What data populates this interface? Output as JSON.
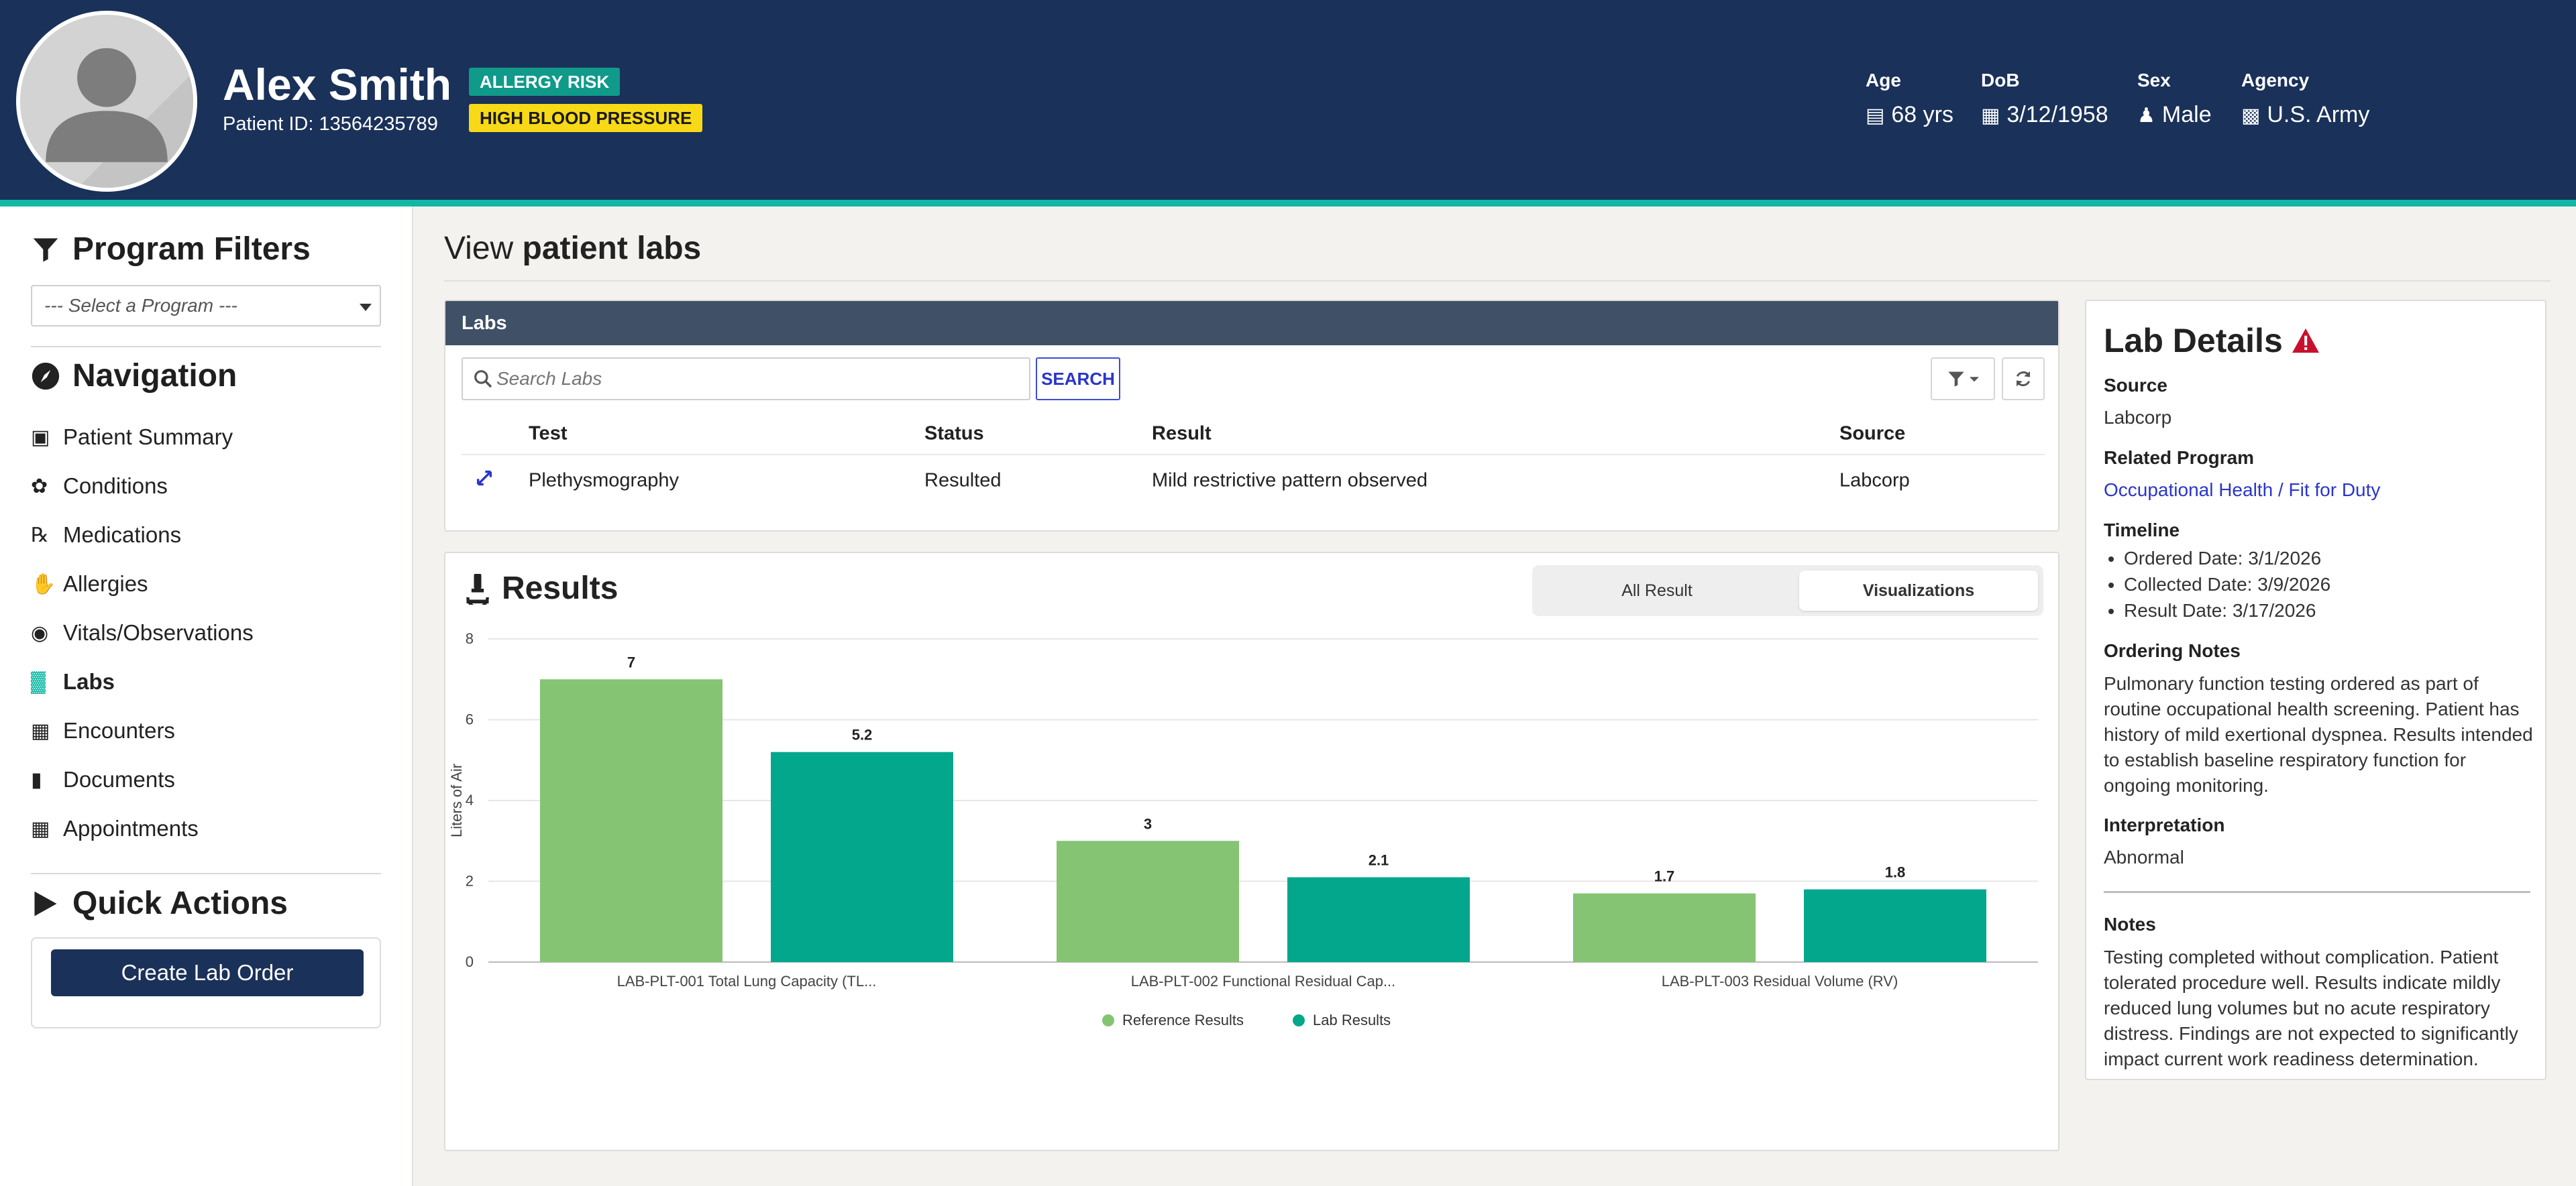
{
  "patient": {
    "name": "Alex Smith",
    "id_text": "Patient ID: 13564235789",
    "badges": {
      "allergy": "ALLERGY RISK",
      "blood_pressure": "HIGH BLOOD PRESSURE"
    },
    "badge_colors": {
      "allergy": "#0f9a8a",
      "blood_pressure": "#f7d917"
    },
    "demographics": {
      "age": {
        "label": "Age",
        "value": "68 yrs",
        "icon": "birthday-cake-icon"
      },
      "dob": {
        "label": "DoB",
        "value": "3/12/1958",
        "icon": "calendar-icon"
      },
      "sex": {
        "label": "Sex",
        "value": "Male",
        "icon": "male-icon"
      },
      "agency": {
        "label": "Agency",
        "value": "U.S. Army",
        "icon": "building-icon"
      }
    }
  },
  "theme": {
    "header_bg": "#1a3159",
    "accent": "#12b8a6",
    "primary_button": "#1a3159"
  },
  "sidebar": {
    "program_filters_title": "Program Filters",
    "program_select_placeholder": "--- Select a Program ---",
    "navigation_title": "Navigation",
    "nav_items": [
      {
        "label": "Patient Summary",
        "icon": "id-card-icon"
      },
      {
        "label": "Conditions",
        "icon": "disease-icon"
      },
      {
        "label": "Medications",
        "icon": "prescription-icon"
      },
      {
        "label": "Allergies",
        "icon": "hand-icon"
      },
      {
        "label": "Vitals/Observations",
        "icon": "eye-icon"
      },
      {
        "label": "Labs",
        "icon": "vials-icon",
        "active": true
      },
      {
        "label": "Encounters",
        "icon": "calendar-icon"
      },
      {
        "label": "Documents",
        "icon": "file-icon"
      },
      {
        "label": "Appointments",
        "icon": "calendar-icon"
      }
    ],
    "quick_actions_title": "Quick Actions",
    "create_lab_order_label": "Create Lab Order"
  },
  "main": {
    "title_prefix": "View",
    "title_bold": "patient labs",
    "labs": {
      "header": "Labs",
      "search_placeholder": "Search Labs",
      "search_button": "SEARCH",
      "columns": [
        "Test",
        "Status",
        "Result",
        "Source"
      ],
      "rows": [
        {
          "test": "Plethysmography",
          "status": "Resulted",
          "result": "Mild restrictive pattern observed",
          "source": "Labcorp"
        }
      ]
    },
    "results": {
      "title": "Results",
      "toggle_options": [
        "All Result",
        "Visualizations"
      ],
      "selected_toggle": "Visualizations"
    }
  },
  "chart_data": {
    "type": "bar",
    "categories": [
      "LAB-PLT-001 Total Lung Capacity (TL...",
      "LAB-PLT-002 Functional Residual Cap...",
      "LAB-PLT-003 Residual Volume (RV)"
    ],
    "series": [
      {
        "name": "Reference Results",
        "values": [
          7,
          3,
          1.7
        ],
        "color": "#84c472"
      },
      {
        "name": "Lab Results",
        "values": [
          5.2,
          2.1,
          1.8
        ],
        "color": "#03a88c"
      }
    ],
    "xlabel": "",
    "ylabel": "Liters of Air",
    "ylim": [
      0,
      8
    ],
    "yticks": [
      0,
      2,
      4,
      6,
      8
    ],
    "grid": true,
    "legend": "bottom-center",
    "data_labels": true
  },
  "lab_details": {
    "title": "Lab Details",
    "source_label": "Source",
    "source": "Labcorp",
    "related_program_label": "Related Program",
    "related_program": "Occupational Health / Fit for Duty",
    "timeline_label": "Timeline",
    "timeline": [
      "Ordered Date: 3/1/2026",
      "Collected Date: 3/9/2026",
      "Result Date: 3/17/2026"
    ],
    "ordering_notes_label": "Ordering Notes",
    "ordering_notes": "Pulmonary function testing ordered as part of routine occupational health screening. Patient has history of mild exertional dyspnea. Results intended to establish baseline respiratory function for ongoing monitoring.",
    "interpretation_label": "Interpretation",
    "interpretation": "Abnormal",
    "notes_label": "Notes",
    "notes": "Testing completed without complication. Patient tolerated procedure well. Results indicate mildly reduced lung volumes but no acute respiratory distress. Findings are not expected to significantly impact current work readiness determination."
  }
}
